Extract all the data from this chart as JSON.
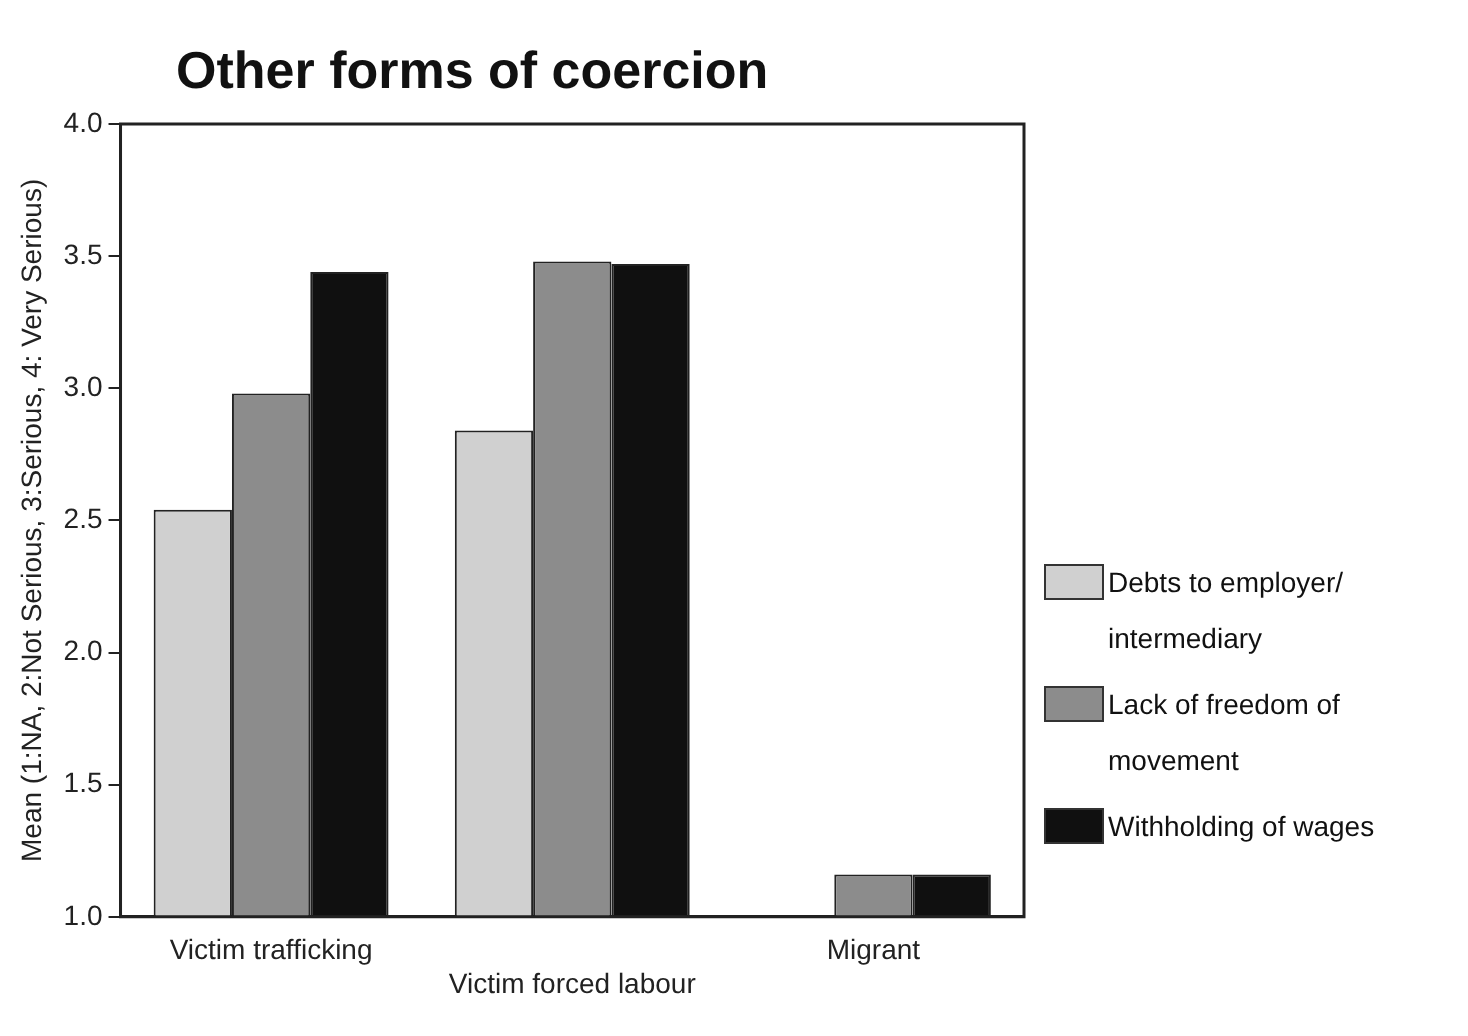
{
  "chart_data": {
    "type": "bar",
    "title": "Other forms of coercion",
    "ylabel": "Mean (1:NA, 2:Not Serious, 3:Serious, 4: Very Serious)",
    "categories": [
      "Victim trafficking",
      "Victim forced labour",
      "Migrant"
    ],
    "series": [
      {
        "name": "Debts to employer/ intermediary",
        "color": "#d0d0d0",
        "values": [
          2.54,
          2.84,
          1.0
        ]
      },
      {
        "name": "Lack of freedom of movement",
        "color": "#8c8c8c",
        "values": [
          2.98,
          3.48,
          1.16
        ]
      },
      {
        "name": "Withholding of wages",
        "color": "#101010",
        "values": [
          3.44,
          3.47,
          1.16
        ]
      }
    ],
    "ylim": [
      1.0,
      4.0
    ],
    "yticks": [
      {
        "value": 1.0,
        "label": "1.0"
      },
      {
        "value": 1.5,
        "label": "1.5"
      },
      {
        "value": 2.0,
        "label": "2.0"
      },
      {
        "value": 2.5,
        "label": "2.5"
      },
      {
        "value": 3.0,
        "label": "3.0"
      },
      {
        "value": 3.5,
        "label": "3.5"
      },
      {
        "value": 4.0,
        "label": "4.0"
      }
    ],
    "grid": false,
    "legend": "right"
  }
}
